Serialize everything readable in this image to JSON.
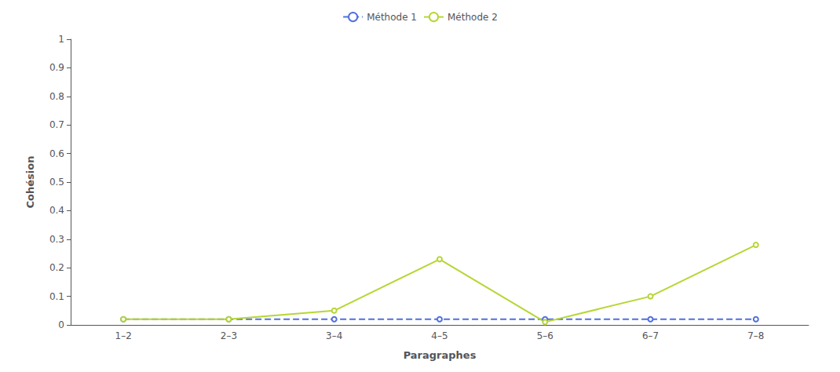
{
  "chart_data": {
    "type": "line",
    "xlabel": "Paragraphes",
    "ylabel": "Cohésion",
    "categories": [
      "1–2",
      "2–3",
      "3–4",
      "4–5",
      "5–6",
      "6–7",
      "7–8"
    ],
    "series": [
      {
        "name": "Méthode 1",
        "values": [
          0.02,
          0.02,
          0.02,
          0.02,
          0.02,
          0.02,
          0.02
        ],
        "line_style": "dashed"
      },
      {
        "name": "Méthode 2",
        "values": [
          0.02,
          0.02,
          0.05,
          0.23,
          0.01,
          0.1,
          0.28
        ],
        "line_style": "solid"
      }
    ],
    "ylim": [
      0,
      1.0
    ],
    "yticks": [
      0,
      0.1,
      0.2,
      0.3,
      0.4,
      0.5,
      0.6,
      0.7,
      0.8,
      0.9,
      1
    ],
    "grid": false,
    "legend": "top"
  }
}
